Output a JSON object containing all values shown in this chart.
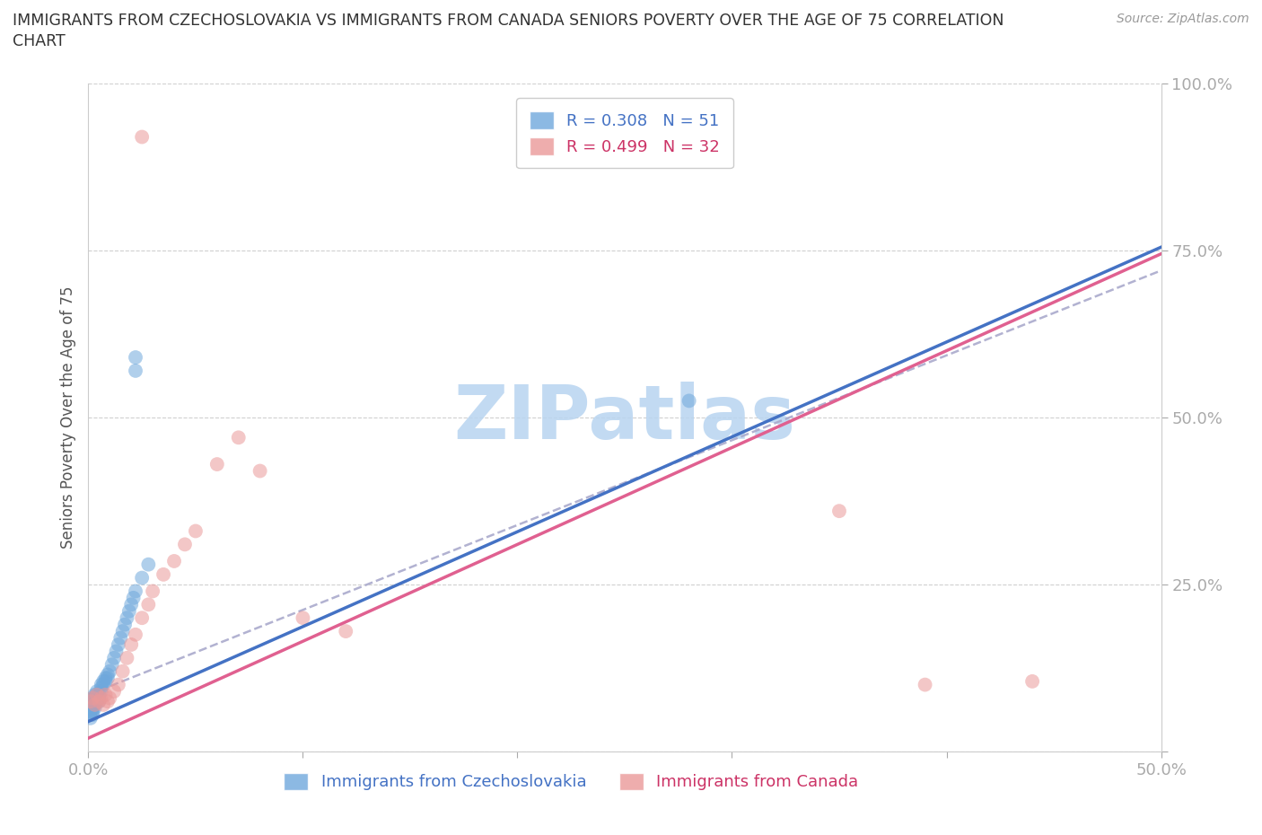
{
  "title_line1": "IMMIGRANTS FROM CZECHOSLOVAKIA VS IMMIGRANTS FROM CANADA SENIORS POVERTY OVER THE AGE OF 75 CORRELATION",
  "title_line2": "CHART",
  "source": "Source: ZipAtlas.com",
  "ylabel": "Seniors Poverty Over the Age of 75",
  "xlim": [
    0.0,
    0.5
  ],
  "ylim": [
    0.0,
    1.0
  ],
  "xtick_positions": [
    0.0,
    0.1,
    0.2,
    0.3,
    0.4,
    0.5
  ],
  "xticklabels": [
    "0.0%",
    "",
    "",
    "",
    "",
    "50.0%"
  ],
  "ytick_positions": [
    0.0,
    0.25,
    0.5,
    0.75,
    1.0
  ],
  "yticklabels": [
    "",
    "25.0%",
    "50.0%",
    "75.0%",
    "100.0%"
  ],
  "blue_color": "#6fa8dc",
  "pink_color": "#ea9999",
  "blue_line_color": "#4472C4",
  "pink_line_color": "#e06090",
  "dash_line_color": "#aaaacc",
  "blue_R": 0.308,
  "blue_N": 51,
  "pink_R": 0.499,
  "pink_N": 32,
  "watermark": "ZIPatlas",
  "watermark_color": "#b8d4f0",
  "blue_line_x": [
    0.0,
    0.5
  ],
  "blue_line_y": [
    0.045,
    0.755
  ],
  "pink_line_x": [
    0.0,
    0.5
  ],
  "pink_line_y": [
    0.02,
    0.745
  ],
  "dash_line_x": [
    0.0,
    0.5
  ],
  "dash_line_y": [
    0.085,
    0.72
  ],
  "blue_x": [
    0.001,
    0.001,
    0.001,
    0.001,
    0.001,
    0.001,
    0.002,
    0.002,
    0.002,
    0.002,
    0.002,
    0.002,
    0.003,
    0.003,
    0.003,
    0.003,
    0.003,
    0.004,
    0.004,
    0.004,
    0.004,
    0.005,
    0.005,
    0.005,
    0.006,
    0.006,
    0.006,
    0.007,
    0.007,
    0.008,
    0.008,
    0.009,
    0.009,
    0.01,
    0.011,
    0.012,
    0.013,
    0.014,
    0.015,
    0.016,
    0.017,
    0.018,
    0.019,
    0.02,
    0.021,
    0.022,
    0.025,
    0.028,
    0.022,
    0.022,
    0.28
  ],
  "blue_y": [
    0.075,
    0.07,
    0.065,
    0.06,
    0.055,
    0.05,
    0.08,
    0.075,
    0.07,
    0.065,
    0.06,
    0.055,
    0.085,
    0.08,
    0.075,
    0.07,
    0.065,
    0.09,
    0.085,
    0.08,
    0.075,
    0.085,
    0.08,
    0.075,
    0.1,
    0.095,
    0.09,
    0.105,
    0.1,
    0.11,
    0.105,
    0.115,
    0.11,
    0.12,
    0.13,
    0.14,
    0.15,
    0.16,
    0.17,
    0.18,
    0.19,
    0.2,
    0.21,
    0.22,
    0.23,
    0.24,
    0.26,
    0.28,
    0.57,
    0.59,
    0.525
  ],
  "pink_x": [
    0.001,
    0.002,
    0.003,
    0.004,
    0.005,
    0.006,
    0.007,
    0.008,
    0.009,
    0.01,
    0.012,
    0.014,
    0.016,
    0.018,
    0.02,
    0.022,
    0.025,
    0.028,
    0.03,
    0.035,
    0.04,
    0.045,
    0.05,
    0.06,
    0.07,
    0.08,
    0.1,
    0.12,
    0.025,
    0.35,
    0.39,
    0.44
  ],
  "pink_y": [
    0.075,
    0.08,
    0.07,
    0.085,
    0.075,
    0.08,
    0.07,
    0.085,
    0.075,
    0.08,
    0.09,
    0.1,
    0.12,
    0.14,
    0.16,
    0.175,
    0.2,
    0.22,
    0.24,
    0.265,
    0.285,
    0.31,
    0.33,
    0.43,
    0.47,
    0.42,
    0.2,
    0.18,
    0.92,
    0.36,
    0.1,
    0.105
  ]
}
